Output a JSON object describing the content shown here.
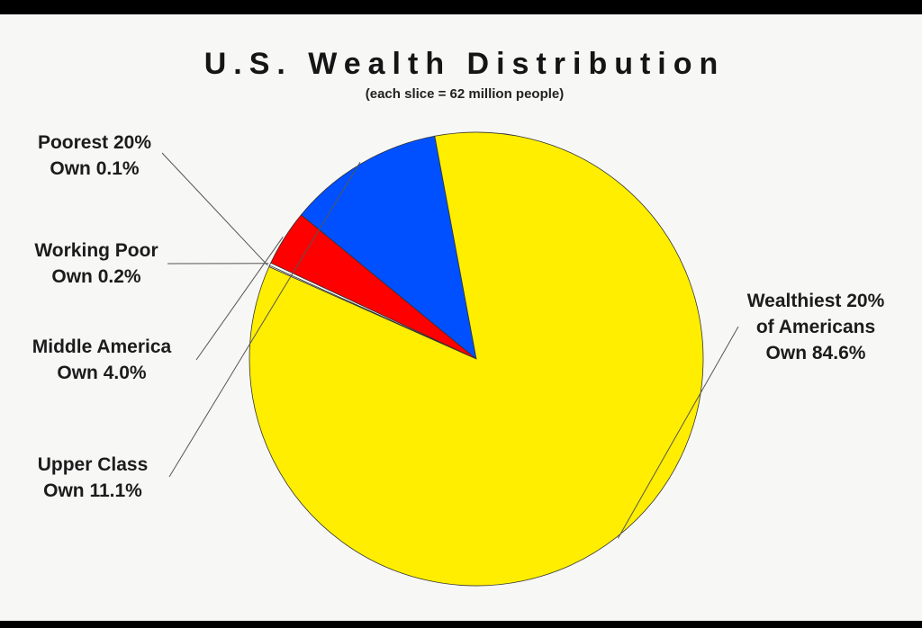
{
  "chart_data": {
    "type": "pie",
    "title": "U.S. Wealth Distribution",
    "subtitle": "(each slice = 62 million people)",
    "slices": [
      {
        "lines": [
          "Poorest 20%",
          "Own 0.1%"
        ],
        "value": 0.1,
        "color": "#ffffff"
      },
      {
        "lines": [
          "Working Poor",
          "Own 0.2%"
        ],
        "value": 0.2,
        "color": "#ffffff"
      },
      {
        "lines": [
          "Middle America",
          "Own 4.0%"
        ],
        "value": 4.0,
        "color": "#ff0000"
      },
      {
        "lines": [
          "Upper Class",
          "Own 11.1%"
        ],
        "value": 11.1,
        "color": "#0050ff"
      },
      {
        "lines": [
          "Wealthiest 20%",
          "of Americans",
          "Own 84.6%"
        ],
        "value": 84.6,
        "color": "#ffee00"
      }
    ]
  }
}
